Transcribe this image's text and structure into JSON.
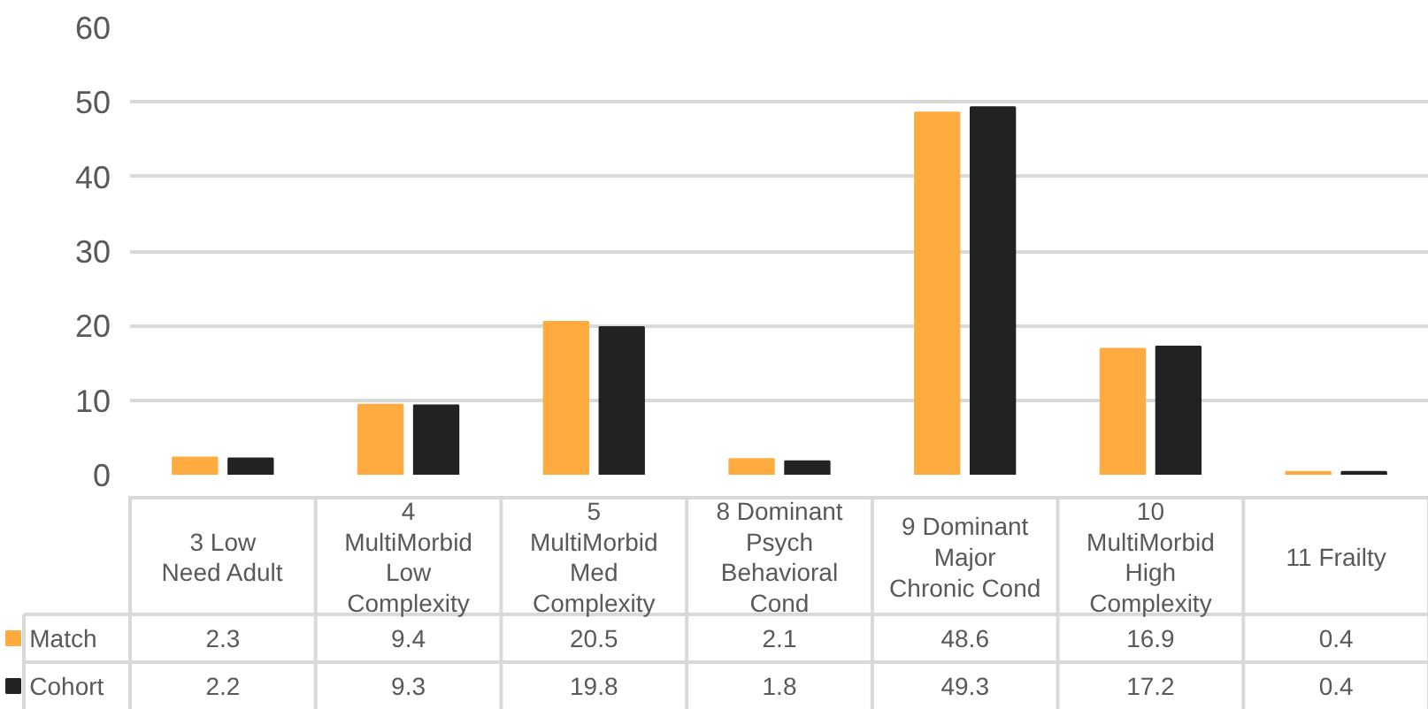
{
  "chart_data": {
    "type": "bar",
    "categories": [
      "3 Low\nNeed Adult",
      "4\nMultiMorbid\nLow\nComplexity",
      "5\nMultiMorbid\nMed\nComplexity",
      "8 Dominant\nPsych\nBehavioral\nCond",
      "9 Dominant\nMajor\nChronic Cond",
      "10\nMultiMorbid\nHigh\nComplexity",
      "11 Frailty"
    ],
    "series": [
      {
        "name": "Match",
        "color": "#ffab40",
        "values": [
          2.3,
          9.4,
          20.5,
          2.1,
          48.6,
          16.9,
          0.4
        ]
      },
      {
        "name": "Cohort",
        "color": "#222222",
        "values": [
          2.2,
          9.3,
          19.8,
          1.8,
          49.3,
          17.2,
          0.4
        ]
      }
    ],
    "ylim": [
      0,
      60
    ],
    "yticks": [
      0,
      10,
      20,
      30,
      40,
      50,
      60
    ],
    "grid": "y",
    "data_labels": true,
    "legend": "bottom left"
  }
}
